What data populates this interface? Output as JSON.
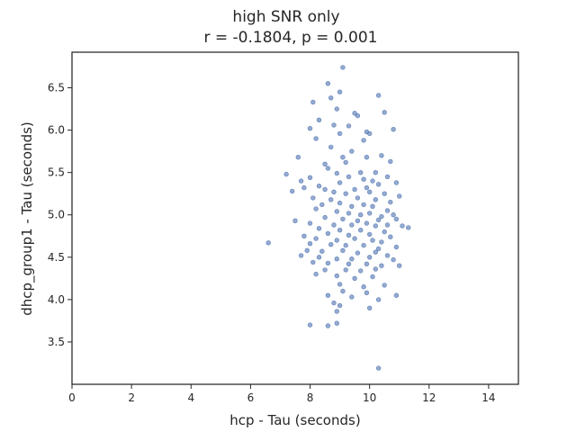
{
  "chart_data": {
    "type": "scatter",
    "title": "high SNR only",
    "subtitle": "r = -0.1804, p = 0.001",
    "xlabel": "hcp - Tau (seconds)",
    "ylabel": "dhcp_group1 - Tau (seconds)",
    "xlim": [
      0,
      15
    ],
    "ylim": [
      3.0,
      6.92
    ],
    "xticks": [
      0,
      2,
      4,
      6,
      8,
      10,
      12,
      14
    ],
    "yticks": [
      3.5,
      4.0,
      4.5,
      5.0,
      5.5,
      6.0,
      6.5
    ],
    "grid": false,
    "marker_color": "#4c72b0",
    "marker_opacity": 0.6,
    "points": [
      [
        9.1,
        6.74
      ],
      [
        8.6,
        6.55
      ],
      [
        8.7,
        6.38
      ],
      [
        8.1,
        6.33
      ],
      [
        10.3,
        6.41
      ],
      [
        9.0,
        6.45
      ],
      [
        8.9,
        6.25
      ],
      [
        9.5,
        6.2
      ],
      [
        9.6,
        6.17
      ],
      [
        8.3,
        6.12
      ],
      [
        10.5,
        6.21
      ],
      [
        10.8,
        6.01
      ],
      [
        8.8,
        6.06
      ],
      [
        9.3,
        6.05
      ],
      [
        9.0,
        5.96
      ],
      [
        8.0,
        6.02
      ],
      [
        8.2,
        5.9
      ],
      [
        9.9,
        5.98
      ],
      [
        9.8,
        5.88
      ],
      [
        10.0,
        5.96
      ],
      [
        8.7,
        5.8
      ],
      [
        9.4,
        5.75
      ],
      [
        9.1,
        5.68
      ],
      [
        7.6,
        5.68
      ],
      [
        9.2,
        5.62
      ],
      [
        8.5,
        5.6
      ],
      [
        9.9,
        5.68
      ],
      [
        10.4,
        5.7
      ],
      [
        10.7,
        5.63
      ],
      [
        8.6,
        5.55
      ],
      [
        9.7,
        5.5
      ],
      [
        10.2,
        5.5
      ],
      [
        7.2,
        5.48
      ],
      [
        7.7,
        5.4
      ],
      [
        8.9,
        5.49
      ],
      [
        9.3,
        5.45
      ],
      [
        8.0,
        5.44
      ],
      [
        9.0,
        5.38
      ],
      [
        9.8,
        5.42
      ],
      [
        10.1,
        5.4
      ],
      [
        10.6,
        5.45
      ],
      [
        10.9,
        5.38
      ],
      [
        7.8,
        5.32
      ],
      [
        8.3,
        5.34
      ],
      [
        8.5,
        5.3
      ],
      [
        9.5,
        5.3
      ],
      [
        9.9,
        5.32
      ],
      [
        10.3,
        5.36
      ],
      [
        7.4,
        5.28
      ],
      [
        8.8,
        5.27
      ],
      [
        9.2,
        5.25
      ],
      [
        10.0,
        5.27
      ],
      [
        10.5,
        5.25
      ],
      [
        11.0,
        5.22
      ],
      [
        8.1,
        5.2
      ],
      [
        8.7,
        5.18
      ],
      [
        9.6,
        5.2
      ],
      [
        10.2,
        5.18
      ],
      [
        10.7,
        5.15
      ],
      [
        8.4,
        5.12
      ],
      [
        9.0,
        5.14
      ],
      [
        9.4,
        5.1
      ],
      [
        9.8,
        5.12
      ],
      [
        10.1,
        5.1
      ],
      [
        10.6,
        5.05
      ],
      [
        8.2,
        5.07
      ],
      [
        8.9,
        5.04
      ],
      [
        9.3,
        5.02
      ],
      [
        9.7,
        5.0
      ],
      [
        10.0,
        5.02
      ],
      [
        10.4,
        4.98
      ],
      [
        10.8,
        5.0
      ],
      [
        8.5,
        4.97
      ],
      [
        9.1,
        4.95
      ],
      [
        9.6,
        4.93
      ],
      [
        10.3,
        4.94
      ],
      [
        10.9,
        4.95
      ],
      [
        7.5,
        4.93
      ],
      [
        8.0,
        4.9
      ],
      [
        8.8,
        4.88
      ],
      [
        9.4,
        4.88
      ],
      [
        9.9,
        4.9
      ],
      [
        10.2,
        4.87
      ],
      [
        10.6,
        4.88
      ],
      [
        11.1,
        4.87
      ],
      [
        11.3,
        4.85
      ],
      [
        8.3,
        4.84
      ],
      [
        9.0,
        4.82
      ],
      [
        9.7,
        4.82
      ],
      [
        10.5,
        4.8
      ],
      [
        8.6,
        4.78
      ],
      [
        9.3,
        4.76
      ],
      [
        10.0,
        4.77
      ],
      [
        10.7,
        4.74
      ],
      [
        7.8,
        4.75
      ],
      [
        8.2,
        4.72
      ],
      [
        8.9,
        4.7
      ],
      [
        9.5,
        4.72
      ],
      [
        10.1,
        4.7
      ],
      [
        10.4,
        4.68
      ],
      [
        6.6,
        4.67
      ],
      [
        8.0,
        4.66
      ],
      [
        8.7,
        4.65
      ],
      [
        9.2,
        4.64
      ],
      [
        9.8,
        4.64
      ],
      [
        10.3,
        4.6
      ],
      [
        10.9,
        4.62
      ],
      [
        7.9,
        4.58
      ],
      [
        8.4,
        4.57
      ],
      [
        9.1,
        4.58
      ],
      [
        9.6,
        4.55
      ],
      [
        10.2,
        4.56
      ],
      [
        10.6,
        4.52
      ],
      [
        7.7,
        4.52
      ],
      [
        8.3,
        4.5
      ],
      [
        8.9,
        4.48
      ],
      [
        9.4,
        4.48
      ],
      [
        10.0,
        4.5
      ],
      [
        10.8,
        4.47
      ],
      [
        8.1,
        4.44
      ],
      [
        8.6,
        4.43
      ],
      [
        9.3,
        4.42
      ],
      [
        9.9,
        4.42
      ],
      [
        10.4,
        4.4
      ],
      [
        11.0,
        4.4
      ],
      [
        8.5,
        4.35
      ],
      [
        9.2,
        4.35
      ],
      [
        9.7,
        4.34
      ],
      [
        10.2,
        4.36
      ],
      [
        8.2,
        4.3
      ],
      [
        8.9,
        4.28
      ],
      [
        9.5,
        4.25
      ],
      [
        10.1,
        4.27
      ],
      [
        9.0,
        4.18
      ],
      [
        9.8,
        4.15
      ],
      [
        10.5,
        4.17
      ],
      [
        9.1,
        4.1
      ],
      [
        9.9,
        4.08
      ],
      [
        8.6,
        4.05
      ],
      [
        9.4,
        4.03
      ],
      [
        10.9,
        4.05
      ],
      [
        10.3,
        4.0
      ],
      [
        9.0,
        3.93
      ],
      [
        8.8,
        3.96
      ],
      [
        10.0,
        3.9
      ],
      [
        8.9,
        3.86
      ],
      [
        8.0,
        3.7
      ],
      [
        8.6,
        3.69
      ],
      [
        8.9,
        3.72
      ],
      [
        10.3,
        3.19
      ]
    ]
  }
}
